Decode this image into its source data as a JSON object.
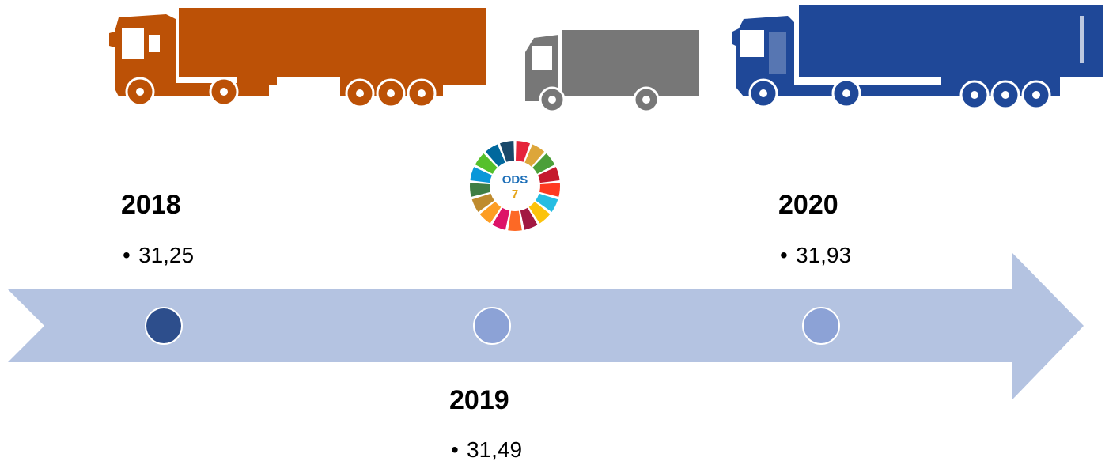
{
  "logo": {
    "title": "ODS",
    "number": "7"
  },
  "timeline": [
    {
      "year": "2018",
      "value": "31,25"
    },
    {
      "year": "2019",
      "value": "31,49"
    },
    {
      "year": "2020",
      "value": "31,93"
    }
  ]
}
